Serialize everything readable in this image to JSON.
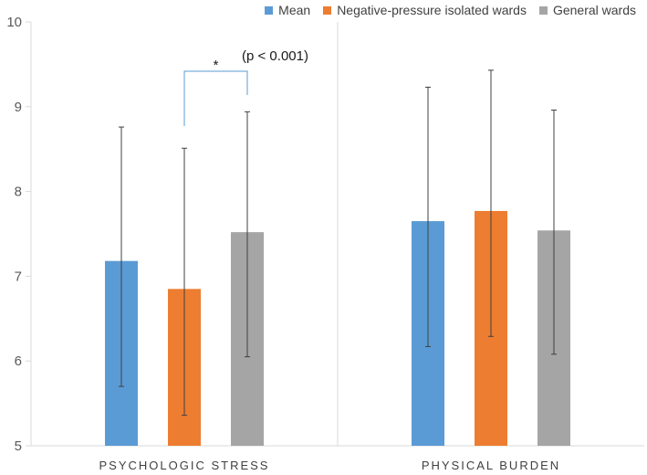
{
  "chart_data": {
    "type": "bar",
    "title": "",
    "xlabel": "",
    "ylabel": "",
    "ylim": [
      5,
      10
    ],
    "yticks": [
      "5",
      "6",
      "7",
      "8",
      "9",
      "10"
    ],
    "grid": false,
    "legend_position": "top-right",
    "categories": [
      "PSYCHOLOGIC STRESS",
      "PHYSICAL BURDEN"
    ],
    "series": [
      {
        "name": "Mean",
        "color": "#5b9bd5",
        "values": [
          7.18,
          7.65
        ],
        "err_low": [
          5.7,
          6.17
        ],
        "err_high": [
          8.76,
          9.23
        ]
      },
      {
        "name": "Negative-pressure isolated wards",
        "color": "#ed7d31",
        "values": [
          6.85,
          7.77
        ],
        "err_low": [
          5.36,
          6.29
        ],
        "err_high": [
          8.51,
          9.43
        ]
      },
      {
        "name": "General wards",
        "color": "#a5a5a5",
        "values": [
          7.52,
          7.54
        ],
        "err_low": [
          6.05,
          6.08
        ],
        "err_high": [
          8.94,
          8.96
        ]
      }
    ],
    "annotations": {
      "significance_marker": "*",
      "p_value_text": "(p < 0.001)"
    }
  }
}
